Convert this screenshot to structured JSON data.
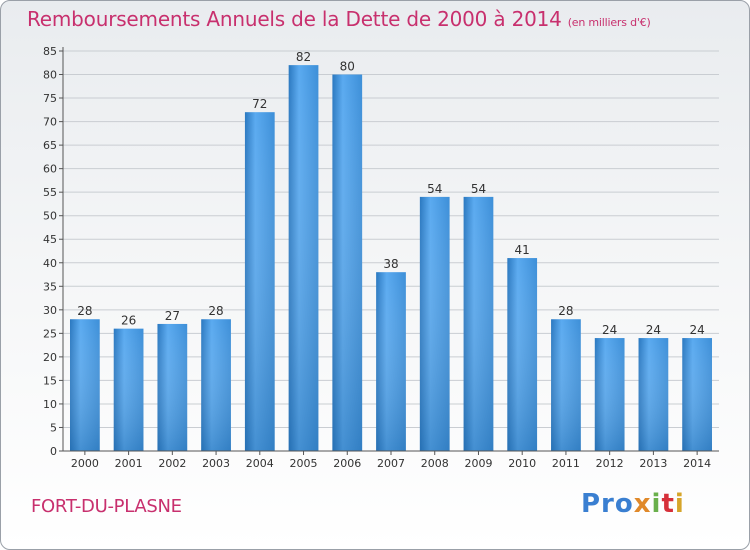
{
  "chart_data": {
    "type": "bar",
    "title": "Remboursements Annuels de la Dette de 2000 à 2014",
    "subtitle": "(en milliers d'€)",
    "categories": [
      "2000",
      "2001",
      "2002",
      "2003",
      "2004",
      "2005",
      "2006",
      "2007",
      "2008",
      "2009",
      "2010",
      "2011",
      "2012",
      "2013",
      "2014"
    ],
    "values": [
      28,
      26,
      27,
      28,
      72,
      82,
      80,
      38,
      54,
      54,
      41,
      28,
      24,
      24,
      24
    ],
    "ylim": [
      0,
      85
    ],
    "yticks": [
      0,
      5,
      10,
      15,
      20,
      25,
      30,
      35,
      40,
      45,
      50,
      55,
      60,
      65,
      70,
      75,
      80,
      85
    ],
    "grid": true,
    "bar_color": "#3b8fd6"
  },
  "place_name": "FORT-DU-PLASNE",
  "logo": {
    "parts": [
      "Pro",
      "x",
      "i",
      "t",
      "i"
    ]
  }
}
